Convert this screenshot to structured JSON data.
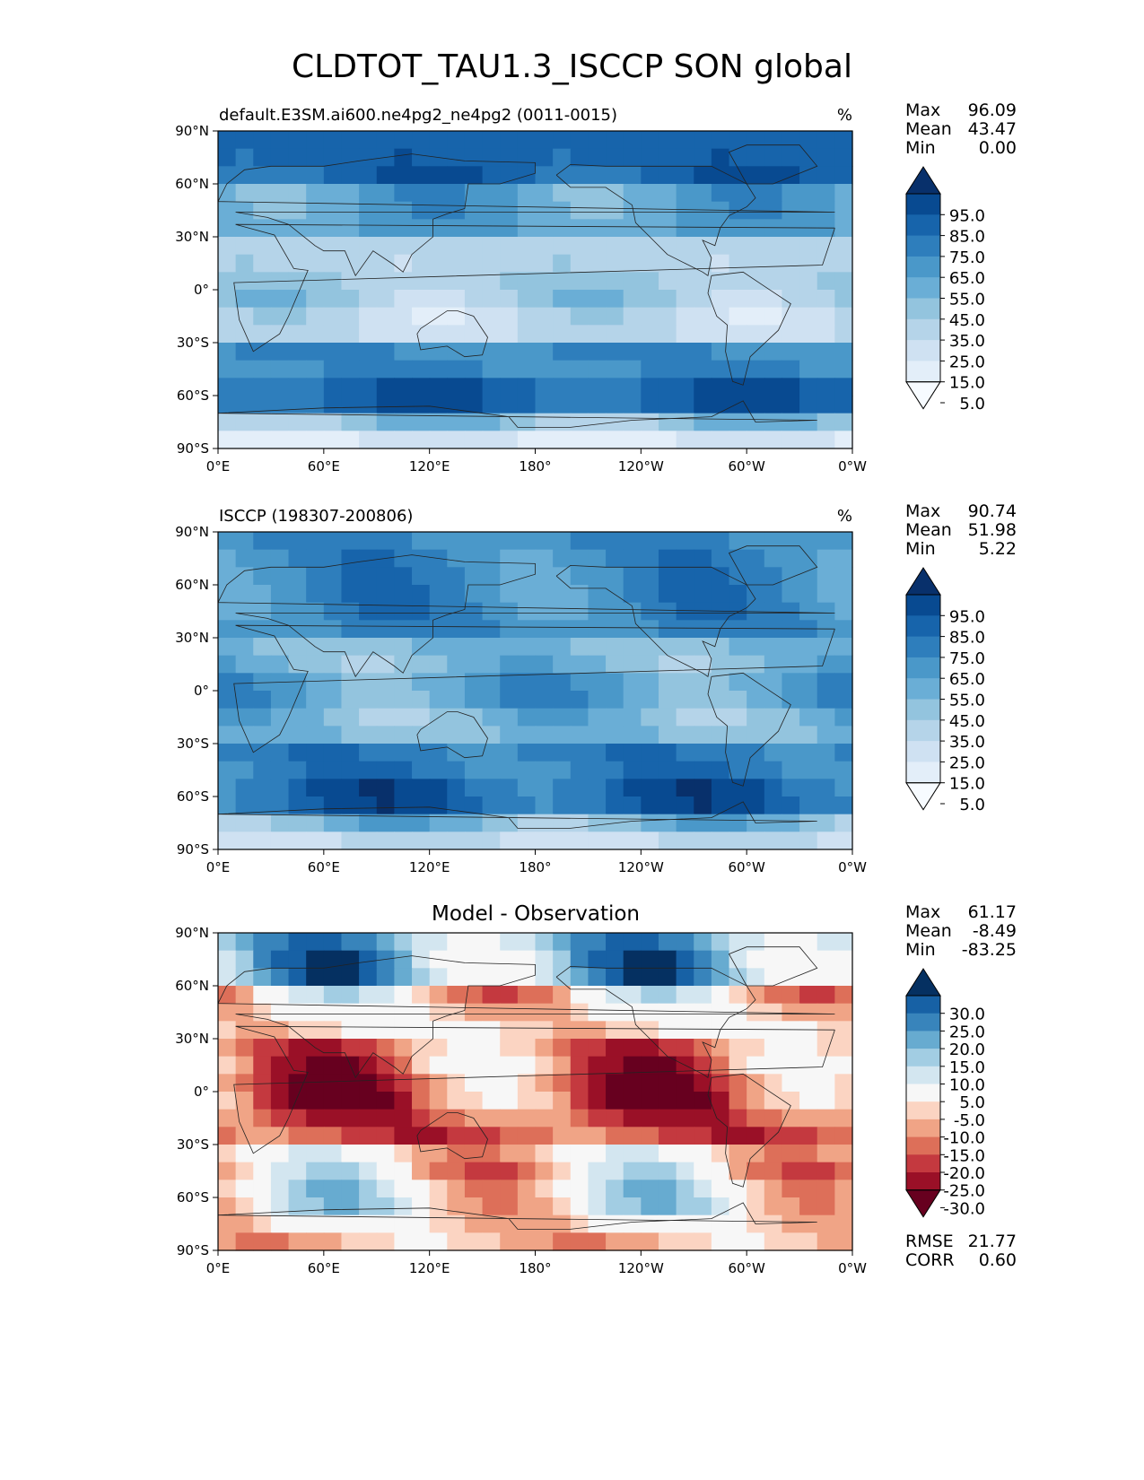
{
  "figure_title": "CLDTOT_TAU1.3_ISCCP SON global",
  "colors": {
    "blues": [
      "#f7fbff",
      "#e3eef9",
      "#cfe1f2",
      "#b5d4e9",
      "#93c4de",
      "#6aaed6",
      "#4a98c9",
      "#2e7ebc",
      "#1764ab",
      "#084a91",
      "#08306b"
    ],
    "rdbu": [
      "#67001f",
      "#9a1027",
      "#c4393f",
      "#dd6f59",
      "#f0a486",
      "#fbd4c2",
      "#f7f7f7",
      "#d3e6f0",
      "#a2cde3",
      "#67abd0",
      "#3884bb",
      "#1761a5",
      "#053061"
    ]
  },
  "panels": [
    {
      "name": "model",
      "title": "default.E3SM.ai600.ne4pg2_ne4pg2 (0011-0015)",
      "units": "%",
      "stats": [
        {
          "label": "Max",
          "value": "96.09"
        },
        {
          "label": "Mean",
          "value": "43.47"
        },
        {
          "label": "Min",
          "value": "0.00"
        }
      ],
      "colorbar": {
        "ticks": [
          "95.0",
          "85.0",
          "75.0",
          "65.0",
          "55.0",
          "45.0",
          "35.0",
          "25.0",
          "15.0",
          "5.0"
        ]
      }
    },
    {
      "name": "obs",
      "title": "ISCCP (198307-200806)",
      "units": "%",
      "stats": [
        {
          "label": "Max",
          "value": "90.74"
        },
        {
          "label": "Mean",
          "value": "51.98"
        },
        {
          "label": "Min",
          "value": "5.22"
        }
      ],
      "colorbar": {
        "ticks": [
          "95.0",
          "85.0",
          "75.0",
          "65.0",
          "55.0",
          "45.0",
          "35.0",
          "25.0",
          "15.0",
          "5.0"
        ]
      }
    },
    {
      "name": "diff",
      "title": "Model - Observation",
      "units": "",
      "stats": [
        {
          "label": "Max",
          "value": "61.17"
        },
        {
          "label": "Mean",
          "value": "-8.49"
        },
        {
          "label": "Min",
          "value": "-83.25"
        }
      ],
      "extra_stats": [
        {
          "label": "RMSE",
          "value": "21.77"
        },
        {
          "label": "CORR",
          "value": "0.60"
        }
      ],
      "colorbar": {
        "ticks": [
          "30.0",
          "25.0",
          "20.0",
          "15.0",
          "10.0",
          "5.0",
          "-5.0",
          "-10.0",
          "-15.0",
          "-20.0",
          "-25.0",
          "-30.0"
        ]
      }
    }
  ],
  "chart_data": {
    "type": "heatmap",
    "title": "CLDTOT_TAU1.3_ISCCP SON global",
    "variable": "CLDTOT_TAU1.3_ISCCP",
    "season": "SON",
    "region": "global",
    "x_ticks": [
      "0°E",
      "60°E",
      "120°E",
      "180°",
      "120°W",
      "60°W",
      "0°W"
    ],
    "y_ticks": [
      "90°N",
      "60°N",
      "30°N",
      "0°",
      "30°S",
      "60°S",
      "90°S"
    ],
    "xlim": [
      0,
      360
    ],
    "ylim": [
      -90,
      90
    ],
    "contour_levels_abs": [
      5,
      15,
      25,
      35,
      45,
      55,
      65,
      75,
      85,
      95
    ],
    "contour_levels_diff": [
      -30,
      -25,
      -20,
      -15,
      -10,
      -5,
      5,
      10,
      15,
      20,
      25,
      30
    ],
    "panels": [
      {
        "name": "model",
        "title": "default.E3SM.ai600.ne4pg2_ne4pg2 (0011-0015)",
        "units": "%",
        "max": 96.09,
        "mean": 43.47,
        "min": 0.0,
        "zonal_bands": [
          {
            "lat": [
              60,
              90
            ],
            "value": 80
          },
          {
            "lat": [
              30,
              60
            ],
            "value": 55
          },
          {
            "lat": [
              10,
              30
            ],
            "value": 30
          },
          {
            "lat": [
              -10,
              10
            ],
            "value": 35
          },
          {
            "lat": [
              -30,
              -10
            ],
            "value": 25
          },
          {
            "lat": [
              -45,
              -30
            ],
            "value": 65
          },
          {
            "lat": [
              -65,
              -45
            ],
            "value": 80
          },
          {
            "lat": [
              -75,
              -65
            ],
            "value": 40
          },
          {
            "lat": [
              -90,
              -75
            ],
            "value": 15
          }
        ]
      },
      {
        "name": "obs",
        "title": "ISCCP (198307-200806)",
        "units": "%",
        "max": 90.74,
        "mean": 51.98,
        "min": 5.22,
        "zonal_bands": [
          {
            "lat": [
              60,
              90
            ],
            "value": 65
          },
          {
            "lat": [
              30,
              60
            ],
            "value": 65
          },
          {
            "lat": [
              10,
              30
            ],
            "value": 45
          },
          {
            "lat": [
              -10,
              10
            ],
            "value": 55
          },
          {
            "lat": [
              -30,
              -10
            ],
            "value": 45
          },
          {
            "lat": [
              -45,
              -30
            ],
            "value": 70
          },
          {
            "lat": [
              -65,
              -45
            ],
            "value": 80
          },
          {
            "lat": [
              -75,
              -65
            ],
            "value": 45
          },
          {
            "lat": [
              -90,
              -75
            ],
            "value": 25
          }
        ]
      },
      {
        "name": "diff",
        "title": "Model - Observation",
        "units": "",
        "max": 61.17,
        "mean": -8.49,
        "min": -83.25,
        "rmse": 21.77,
        "corr": 0.6,
        "zonal_bands": [
          {
            "lat": [
              60,
              90
            ],
            "value": 15
          },
          {
            "lat": [
              30,
              60
            ],
            "value": -5
          },
          {
            "lat": [
              10,
              30
            ],
            "value": -15
          },
          {
            "lat": [
              -10,
              10
            ],
            "value": -20
          },
          {
            "lat": [
              -30,
              -10
            ],
            "value": -20
          },
          {
            "lat": [
              -45,
              -30
            ],
            "value": -5
          },
          {
            "lat": [
              -65,
              -45
            ],
            "value": 0
          },
          {
            "lat": [
              -75,
              -65
            ],
            "value": -5
          },
          {
            "lat": [
              -90,
              -75
            ],
            "value": -10
          }
        ]
      }
    ]
  }
}
